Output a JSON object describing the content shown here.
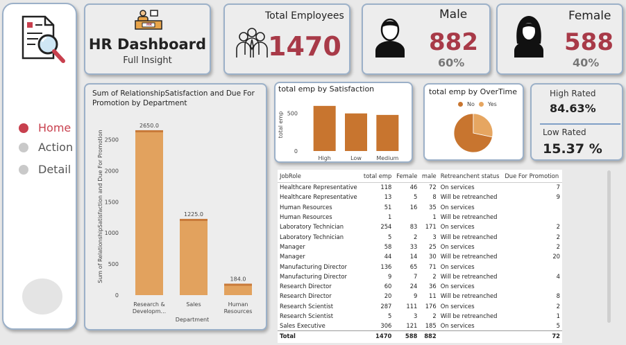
{
  "nav": {
    "items": [
      {
        "label": "Home"
      },
      {
        "label": "Action"
      },
      {
        "label": "Detail"
      }
    ]
  },
  "header": {
    "title": "HR Dashboard",
    "subtitle": "Full Insight",
    "badge": "HR"
  },
  "kpi": {
    "total": {
      "label": "Total Employees",
      "value": "1470"
    },
    "male": {
      "label": "Male",
      "value": "882",
      "pct": "60%"
    },
    "female": {
      "label": "Female",
      "value": "588",
      "pct": "40%"
    },
    "high_rated": {
      "label": "High Rated",
      "value": "84.63%"
    },
    "low_rated": {
      "label": "Low Rated",
      "value": "15.37 %"
    }
  },
  "chart_data": [
    {
      "type": "bar",
      "title": "Sum of RelationshipSatisfaction and Due For Promotion by Department",
      "xlabel": "Department",
      "ylabel": "Sum of RelationshipSatisfaction and Due For Promotion",
      "categories": [
        "Research & Developm...",
        "Sales",
        "Human Resources"
      ],
      "values": [
        2650.0,
        1225.0,
        184.0
      ],
      "data_labels": [
        "2650.0",
        "1225.0",
        "184.0"
      ],
      "yticks": [
        0,
        500,
        1000,
        1500,
        2000,
        2500
      ],
      "ylim": [
        0,
        2850
      ],
      "colors": {
        "bar": "#e2a25e",
        "cap": "#c87a3a"
      }
    },
    {
      "type": "bar",
      "title": "total emp by Satisfaction",
      "ylabel": "total emp",
      "categories": [
        "High",
        "Low",
        "Medium"
      ],
      "values": [
        600,
        500,
        480
      ],
      "yticks": [
        0,
        500
      ],
      "ylim": [
        0,
        700
      ],
      "colors": {
        "bar": "#c8752f"
      }
    },
    {
      "type": "pie",
      "title": "total emp by OverTime",
      "legend": [
        "No",
        "Yes"
      ],
      "values": [
        1054,
        416
      ],
      "colors": {
        "No": "#c8752f",
        "Yes": "#e6a661"
      }
    }
  ],
  "table": {
    "columns": [
      "JobRole",
      "total emp",
      "Female",
      "male",
      "Retreanchent status",
      "Due For Promotion"
    ],
    "rows": [
      [
        "Healthcare Representative",
        "118",
        "46",
        "72",
        "On services",
        "7"
      ],
      [
        "Healthcare Representative",
        "13",
        "5",
        "8",
        "Will be retreanched",
        "9"
      ],
      [
        "Human Resources",
        "51",
        "16",
        "35",
        "On services",
        ""
      ],
      [
        "Human Resources",
        "1",
        "",
        "1",
        "Will be retreanched",
        ""
      ],
      [
        "Laboratory Technician",
        "254",
        "83",
        "171",
        "On services",
        "2"
      ],
      [
        "Laboratory Technician",
        "5",
        "2",
        "3",
        "Will be retreanched",
        "2"
      ],
      [
        "Manager",
        "58",
        "33",
        "25",
        "On services",
        "2"
      ],
      [
        "Manager",
        "44",
        "14",
        "30",
        "Will be retreanched",
        "20"
      ],
      [
        "Manufacturing Director",
        "136",
        "65",
        "71",
        "On services",
        ""
      ],
      [
        "Manufacturing Director",
        "9",
        "7",
        "2",
        "Will be retreanched",
        "4"
      ],
      [
        "Research Director",
        "60",
        "24",
        "36",
        "On services",
        ""
      ],
      [
        "Research Director",
        "20",
        "9",
        "11",
        "Will be retreanched",
        "8"
      ],
      [
        "Research Scientist",
        "287",
        "111",
        "176",
        "On services",
        "2"
      ],
      [
        "Research Scientist",
        "5",
        "3",
        "2",
        "Will be retreanched",
        "1"
      ],
      [
        "Sales Executive",
        "306",
        "121",
        "185",
        "On services",
        "5"
      ]
    ],
    "total": [
      "Total",
      "1470",
      "588",
      "882",
      "",
      "72"
    ]
  }
}
